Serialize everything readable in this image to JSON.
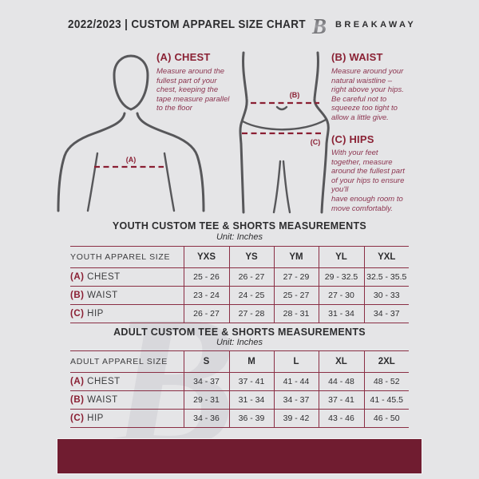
{
  "header": {
    "title": "2022/2023  |  CUSTOM APPAREL SIZE CHART",
    "brand": "BREAKAWAY"
  },
  "watermark": {
    "letter": "B"
  },
  "colors": {
    "background": "#e5e5e7",
    "accent_maroon": "#8a2134",
    "table_line": "#8a2e44",
    "footer_bar": "#701c30",
    "figure_outline": "#57575a"
  },
  "diagram": {
    "label_a": "(A)",
    "label_b": "(B)",
    "label_c": "(C)"
  },
  "guide": {
    "chest": {
      "heading": "(A) CHEST",
      "body": "Measure around the\nfullest part of your\nchest, keeping the\ntape measure parallel\nto the floor"
    },
    "waist": {
      "heading": "(B) WAIST",
      "body": "Measure around your\nnatural waistline –\nright above your hips.\nBe careful not to\nsqueeze too tight to\nallow a little give."
    },
    "hips": {
      "heading": "(C) HIPS",
      "body": "With your feet\ntogether, measure\naround the fullest part\nof your hips to ensure\nyou'll\nhave enough room to\nmove comfortably."
    }
  },
  "youth_table": {
    "title": "YOUTH CUSTOM TEE & SHORTS MEASUREMENTS",
    "unit": "Unit: Inches",
    "columns": [
      "YOUTH APPAREL SIZE",
      "YXS",
      "YS",
      "YM",
      "YL",
      "YXL"
    ],
    "rows": [
      {
        "key": "(A)",
        "label": "CHEST",
        "values": [
          "25 - 26",
          "26 - 27",
          "27 - 29",
          "29 - 32.5",
          "32.5 - 35.5"
        ]
      },
      {
        "key": "(B)",
        "label": "WAIST",
        "values": [
          "23 - 24",
          "24 - 25",
          "25 - 27",
          "27 - 30",
          "30 - 33"
        ]
      },
      {
        "key": "(C)",
        "label": "HIP",
        "values": [
          "26 - 27",
          "27 - 28",
          "28 - 31",
          "31 - 34",
          "34 - 37"
        ]
      }
    ]
  },
  "adult_table": {
    "title": "ADULT CUSTOM TEE & SHORTS MEASUREMENTS",
    "unit": "Unit: Inches",
    "columns": [
      "ADULT APPAREL SIZE",
      "S",
      "M",
      "L",
      "XL",
      "2XL"
    ],
    "rows": [
      {
        "key": "(A)",
        "label": "CHEST",
        "values": [
          "34 - 37",
          "37 - 41",
          "41 - 44",
          "44 - 48",
          "48 - 52"
        ]
      },
      {
        "key": "(B)",
        "label": "WAIST",
        "values": [
          "29 - 31",
          "31 - 34",
          "34 - 37",
          "37 - 41",
          "41 - 45.5"
        ]
      },
      {
        "key": "(C)",
        "label": "HIP",
        "values": [
          "34 - 36",
          "36 - 39",
          "39 - 42",
          "43 - 46",
          "46 - 50"
        ]
      }
    ]
  }
}
